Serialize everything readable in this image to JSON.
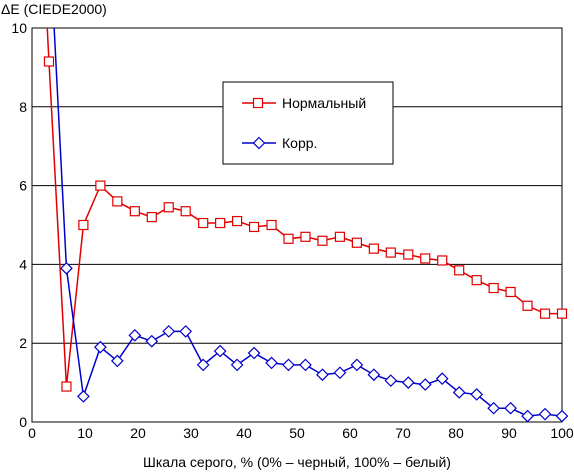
{
  "chart_data": {
    "type": "line",
    "ylabel": "ΔE (CIEDE2000)",
    "xlabel": "Шкала серого, % (0% – черный, 100% – белый)",
    "xlim": [
      0,
      100
    ],
    "ylim": [
      0,
      10
    ],
    "x_ticks": [
      0,
      10,
      20,
      30,
      40,
      50,
      60,
      70,
      80,
      90,
      100
    ],
    "y_ticks": [
      0,
      2,
      4,
      6,
      8,
      10
    ],
    "grid": "horizontal",
    "legend": "center-right",
    "series": [
      {
        "name": "Нормальный",
        "color": "#e00000",
        "marker": "square",
        "x": [
          3.2,
          6.5,
          9.7,
          12.9,
          16.1,
          19.4,
          22.6,
          25.8,
          29.0,
          32.3,
          35.5,
          38.7,
          41.9,
          45.2,
          48.4,
          51.6,
          54.8,
          58.1,
          61.3,
          64.5,
          67.7,
          71.0,
          74.2,
          77.4,
          80.6,
          83.9,
          87.1,
          90.3,
          93.5,
          96.8,
          100.0
        ],
        "y": [
          9.15,
          0.9,
          5.0,
          6.0,
          5.6,
          5.35,
          5.2,
          5.45,
          5.35,
          5.05,
          5.05,
          5.1,
          4.95,
          5.0,
          4.65,
          4.7,
          4.6,
          4.7,
          4.55,
          4.4,
          4.3,
          4.25,
          4.15,
          4.1,
          3.85,
          3.6,
          3.4,
          3.3,
          2.95,
          2.75,
          2.75
        ]
      },
      {
        "name": "Корр.",
        "color": "#0000cc",
        "marker": "diamond",
        "x": [
          6.5,
          9.7,
          12.9,
          16.1,
          19.4,
          22.6,
          25.8,
          29.0,
          32.3,
          35.5,
          38.7,
          41.9,
          45.2,
          48.4,
          51.6,
          54.8,
          58.1,
          61.3,
          64.5,
          67.7,
          71.0,
          74.2,
          77.4,
          80.6,
          83.9,
          87.1,
          90.3,
          93.5,
          96.8,
          100.0
        ],
        "y": [
          3.9,
          0.65,
          1.9,
          1.55,
          2.2,
          2.05,
          2.3,
          2.3,
          1.45,
          1.8,
          1.45,
          1.75,
          1.5,
          1.45,
          1.45,
          1.2,
          1.25,
          1.45,
          1.2,
          1.05,
          1.0,
          0.95,
          1.1,
          0.75,
          0.7,
          0.35,
          0.35,
          0.15,
          0.2,
          0.15
        ]
      }
    ]
  }
}
